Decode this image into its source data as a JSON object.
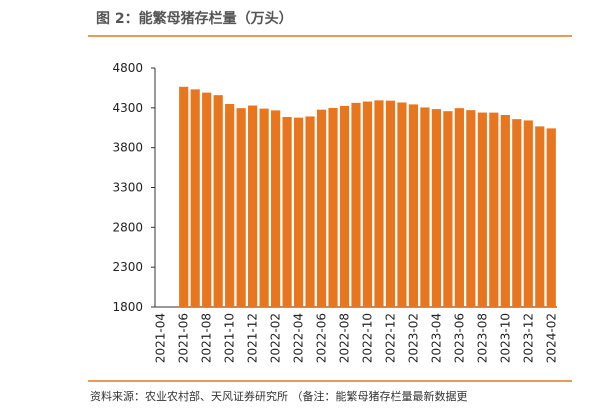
{
  "chart_data": {
    "type": "bar",
    "title": "图 2：能繁母猪存栏量（万头）",
    "source": "资料来源：农业农村部、天风证券研究所 （备注：能繁母猪存栏量最新数据更",
    "categories": [
      "2021-04",
      null,
      "2021-06",
      null,
      "2021-08",
      null,
      "2021-10",
      null,
      "2021-12",
      null,
      "2022-02",
      null,
      "2022-04",
      null,
      "2022-06",
      null,
      "2022-08",
      null,
      "2022-10",
      null,
      "2022-12",
      null,
      "2023-02",
      null,
      "2023-04",
      null,
      "2023-06",
      null,
      "2023-08",
      null,
      "2023-10",
      null,
      "2023-12",
      null,
      "2024-02"
    ],
    "values": [
      null,
      null,
      4564,
      4532,
      4491,
      4459,
      4348,
      4296,
      4329,
      4290,
      4268,
      4185,
      4177,
      4192,
      4277,
      4298,
      4324,
      4362,
      4379,
      4394,
      4390,
      4367,
      4343,
      4305,
      4284,
      4258,
      4296,
      4271,
      4241,
      4240,
      4210,
      4158,
      4142,
      4067,
      4042
    ],
    "color": "#e8761f",
    "ylim": [
      1800,
      4800
    ],
    "yticks": [
      1800,
      2300,
      2800,
      3300,
      3800,
      4300,
      4800
    ]
  }
}
